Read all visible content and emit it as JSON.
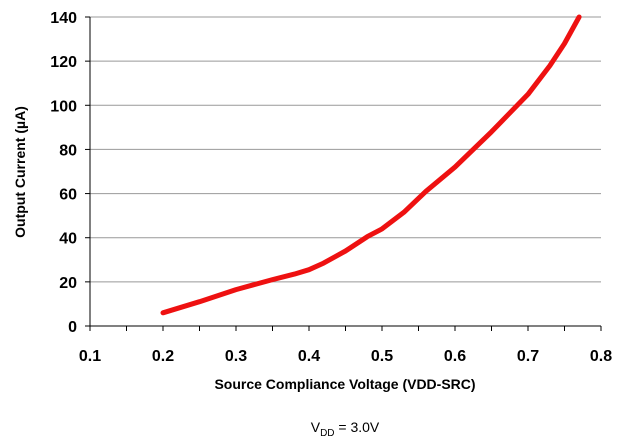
{
  "chart_data": {
    "type": "line",
    "title": "",
    "xlabel": "Source Compliance Voltage (VDD-SRC)",
    "ylabel": "Output Current (µA)",
    "xlim": [
      0.1,
      0.8
    ],
    "ylim": [
      0,
      140
    ],
    "x_ticks": [
      "0.1",
      "0.2",
      "0.3",
      "0.4",
      "0.5",
      "0.6",
      "0.7",
      "0.8"
    ],
    "y_ticks": [
      "0",
      "20",
      "40",
      "60",
      "80",
      "100",
      "120",
      "140"
    ],
    "grid": "horizontal",
    "line_color": "#ee1111",
    "grid_color": "#999999",
    "series": [
      {
        "x": [
          0.2,
          0.25,
          0.3,
          0.35,
          0.38,
          0.4,
          0.42,
          0.45,
          0.48,
          0.5,
          0.53,
          0.56,
          0.6,
          0.65,
          0.7,
          0.73,
          0.75,
          0.77
        ],
        "y": [
          6,
          11,
          16.5,
          21,
          23.5,
          25.5,
          28.5,
          34,
          40.5,
          44,
          51.5,
          61,
          72,
          88,
          105,
          118,
          128,
          140
        ]
      }
    ],
    "caption": {
      "main": "V",
      "sub": "DD",
      "rest": " = 3.0V"
    }
  }
}
